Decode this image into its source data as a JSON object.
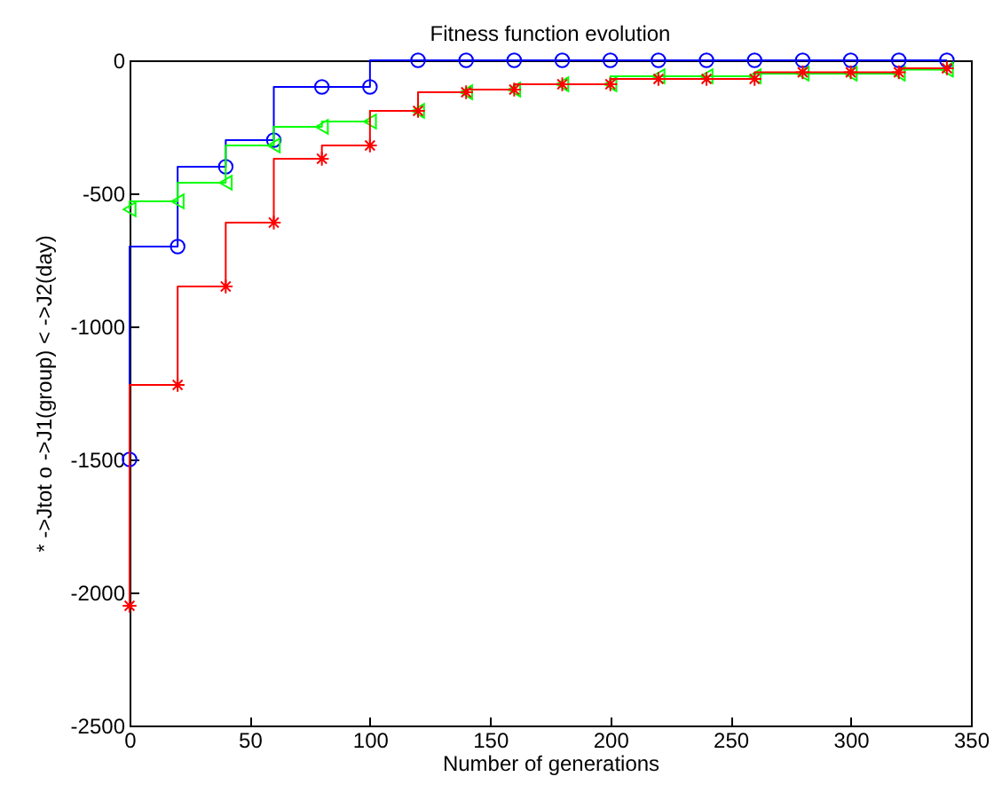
{
  "chart_data": {
    "type": "step",
    "title": "Fitness function evolution",
    "xlabel": "Number of generations",
    "ylabel": "*  ->Jtot      o ->J1(group)      <  ->J2(day)",
    "x": [
      0,
      20,
      40,
      60,
      80,
      100,
      120,
      140,
      160,
      180,
      200,
      220,
      240,
      260,
      280,
      300,
      320,
      340
    ],
    "series": [
      {
        "color": "#0000ff",
        "marker": "circle",
        "values": [
          -1500,
          -700,
          -400,
          -300,
          -100,
          -100,
          0,
          0,
          0,
          0,
          0,
          0,
          0,
          0,
          0,
          0,
          0,
          0
        ]
      },
      {
        "color": "#00ff00",
        "marker": "triangle",
        "values": [
          -560,
          -530,
          -460,
          -320,
          -250,
          -230,
          -190,
          -120,
          -110,
          -90,
          -90,
          -60,
          -60,
          -60,
          -50,
          -50,
          -50,
          -35
        ]
      },
      {
        "color": "#ff0000",
        "marker": "cross",
        "values": [
          -2050,
          -1220,
          -850,
          -610,
          -370,
          -320,
          -190,
          -120,
          -110,
          -90,
          -90,
          -70,
          -70,
          -70,
          -45,
          -45,
          -45,
          -30
        ]
      }
    ],
    "xlim": [
      0,
      350
    ],
    "xticks": [
      0,
      50,
      100,
      150,
      200,
      250,
      300,
      350
    ],
    "ylim": [
      -2500,
      0
    ],
    "yticks": [
      -2500,
      -2000,
      -1500,
      -1000,
      -500,
      0
    ],
    "grid": false
  }
}
